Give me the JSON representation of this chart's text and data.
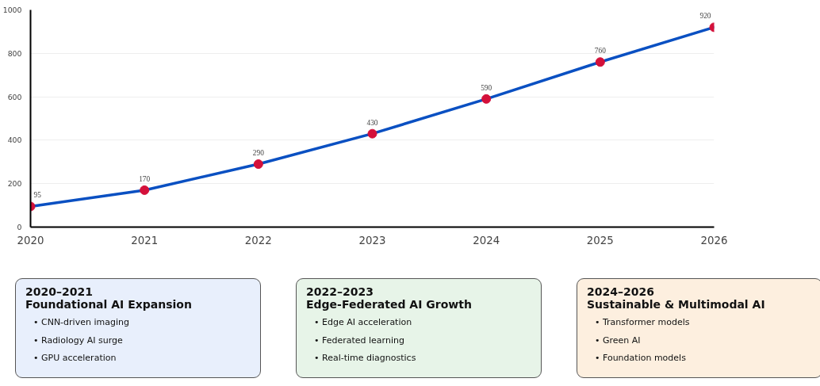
{
  "chart_data": [
    {
      "type": "line",
      "x": [
        2020,
        2021,
        2022,
        2023,
        2024,
        2025,
        2026
      ],
      "xlim": [
        2020,
        2026
      ],
      "xticks": [
        2020,
        2021,
        2022,
        2023,
        2024,
        2025,
        2026
      ],
      "ylim": [
        0,
        1000
      ],
      "yticks": [
        0,
        200,
        400,
        600,
        800,
        1000
      ],
      "grid": "y",
      "marker": "circle",
      "line_style": "solid",
      "data_labels": true,
      "series": [
        {
          "color": "#0a50c2",
          "colors": [
            "#d4103a",
            "#d4103a",
            "#d4103a",
            "#d4103a",
            "#d4103a",
            "#d4103a",
            "#d4103a"
          ],
          "values": [
            95,
            170,
            290,
            430,
            590,
            760,
            920
          ]
        }
      ]
    },
    {
      "type": "other",
      "title": "2020–2021",
      "subtitle": "Foundational AI Expansion",
      "color": "#e8effc",
      "annotations": [
        "• CNN-driven imaging",
        "• Radiology AI surge",
        "• GPU acceleration"
      ]
    },
    {
      "type": "other",
      "title": "2022–2023",
      "subtitle": "Edge-Federated AI Growth",
      "color": "#e7f4e8",
      "annotations": [
        "• Edge AI acceleration",
        "• Federated learning",
        "• Real-time diagnostics"
      ]
    },
    {
      "type": "other",
      "title": "2024–2026",
      "subtitle": "Sustainable & Multimodal AI",
      "color": "#fdefdf",
      "annotations": [
        "• Transformer models",
        "• Green AI",
        "• Foundation models"
      ]
    }
  ]
}
